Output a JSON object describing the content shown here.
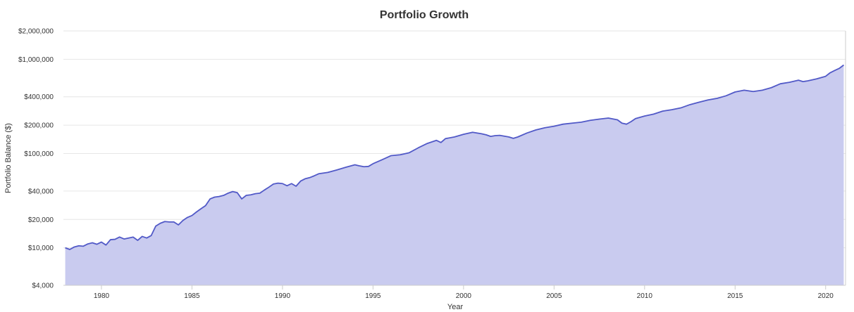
{
  "chart_data": {
    "type": "area",
    "title": "Portfolio Growth",
    "xlabel": "Year",
    "ylabel": "Portfolio Balance ($)",
    "y_scale": "log",
    "ylim": [
      4000,
      2000000
    ],
    "xlim": [
      1977.9,
      2021.1
    ],
    "grid": true,
    "legend": "none",
    "x_ticks": [
      1980,
      1985,
      1990,
      1995,
      2000,
      2005,
      2010,
      2015,
      2020
    ],
    "x_tick_labels": [
      "1980",
      "1985",
      "1990",
      "1995",
      "2000",
      "2005",
      "2010",
      "2015",
      "2020"
    ],
    "y_ticks": [
      4000,
      10000,
      20000,
      40000,
      100000,
      200000,
      400000,
      1000000,
      2000000
    ],
    "y_tick_labels": [
      "$4,000",
      "$10,000",
      "$20,000",
      "$40,000",
      "$100,000",
      "$200,000",
      "$400,000",
      "$1,000,000",
      "$2,000,000"
    ],
    "line_color": "#5159c7",
    "fill_color": "#c9cbef",
    "series": [
      {
        "x": [
          1978.0,
          1978.25,
          1978.5,
          1978.75,
          1979.0,
          1979.25,
          1979.5,
          1979.75,
          1980.0,
          1980.25,
          1980.5,
          1980.75,
          1981.0,
          1981.25,
          1981.5,
          1981.75,
          1982.0,
          1982.25,
          1982.5,
          1982.75,
          1983.0,
          1983.25,
          1983.5,
          1983.75,
          1984.0,
          1984.25,
          1984.5,
          1984.75,
          1985.0,
          1985.25,
          1985.5,
          1985.75,
          1986.0,
          1986.25,
          1986.5,
          1986.75,
          1987.0,
          1987.25,
          1987.5,
          1987.75,
          1988.0,
          1988.25,
          1988.5,
          1988.75,
          1989.0,
          1989.25,
          1989.5,
          1989.75,
          1990.0,
          1990.25,
          1990.5,
          1990.75,
          1991.0,
          1991.25,
          1991.5,
          1991.75,
          1992.0,
          1992.5,
          1993.0,
          1993.5,
          1994.0,
          1994.25,
          1994.5,
          1994.75,
          1995.0,
          1995.5,
          1996.0,
          1996.5,
          1997.0,
          1997.5,
          1998.0,
          1998.5,
          1998.75,
          1999.0,
          1999.5,
          2000.0,
          2000.5,
          2001.0,
          2001.25,
          2001.5,
          2001.75,
          2002.0,
          2002.5,
          2002.75,
          2003.0,
          2003.5,
          2004.0,
          2004.5,
          2005.0,
          2005.5,
          2006.0,
          2006.5,
          2007.0,
          2007.5,
          2008.0,
          2008.5,
          2008.75,
          2009.0,
          2009.25,
          2009.5,
          2010.0,
          2010.5,
          2011.0,
          2011.5,
          2012.0,
          2012.5,
          2013.0,
          2013.5,
          2014.0,
          2014.5,
          2015.0,
          2015.5,
          2016.0,
          2016.5,
          2017.0,
          2017.5,
          2018.0,
          2018.5,
          2018.75,
          2019.0,
          2019.5,
          2020.0,
          2020.25,
          2020.5,
          2020.75,
          2021.0
        ],
        "y": [
          10000,
          9600,
          10200,
          10500,
          10400,
          11000,
          11300,
          10900,
          11500,
          10700,
          12200,
          12300,
          13000,
          12400,
          12700,
          13000,
          12000,
          13200,
          12700,
          13500,
          17000,
          18200,
          19000,
          18800,
          18800,
          17500,
          19500,
          21000,
          22000,
          24000,
          26000,
          28000,
          33000,
          34500,
          35000,
          36000,
          38000,
          39500,
          38500,
          33000,
          36000,
          36500,
          37500,
          38000,
          41000,
          44000,
          47500,
          48500,
          48000,
          45500,
          48000,
          45000,
          51000,
          54000,
          55500,
          58000,
          61000,
          63000,
          67000,
          71500,
          76000,
          74000,
          72500,
          73000,
          78000,
          86000,
          95000,
          97000,
          102000,
          115000,
          128000,
          138000,
          131000,
          144000,
          150000,
          160000,
          168000,
          162000,
          158000,
          152000,
          155000,
          156000,
          150000,
          145000,
          150000,
          165000,
          178000,
          188000,
          195000,
          205000,
          210000,
          215000,
          225000,
          232000,
          238000,
          228000,
          210000,
          205000,
          218000,
          235000,
          250000,
          262000,
          282000,
          292000,
          305000,
          330000,
          350000,
          370000,
          385000,
          410000,
          450000,
          470000,
          455000,
          470000,
          500000,
          550000,
          570000,
          600000,
          580000,
          590000,
          620000,
          660000,
          720000,
          760000,
          800000,
          870000
        ]
      }
    ]
  }
}
